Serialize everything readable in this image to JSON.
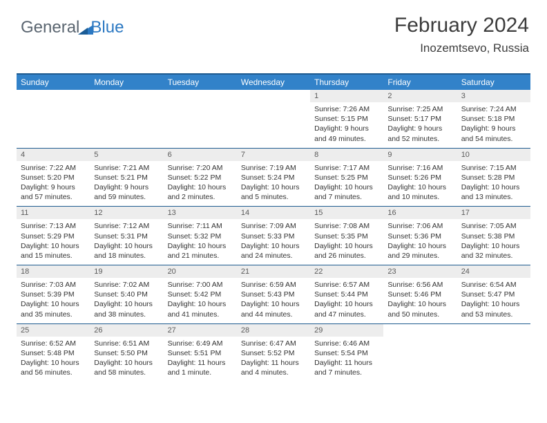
{
  "logo": {
    "text1": "General",
    "text2": "Blue"
  },
  "title": "February 2024",
  "location": "Inozemtsevo, Russia",
  "colors": {
    "header_bg": "#3282c9",
    "header_border": "#1d5a8f",
    "daynum_bg": "#ededed",
    "text": "#333333"
  },
  "day_headers": [
    "Sunday",
    "Monday",
    "Tuesday",
    "Wednesday",
    "Thursday",
    "Friday",
    "Saturday"
  ],
  "weeks": [
    [
      null,
      null,
      null,
      null,
      {
        "n": "1",
        "sr": "7:26 AM",
        "ss": "5:15 PM",
        "dl": "9 hours and 49 minutes."
      },
      {
        "n": "2",
        "sr": "7:25 AM",
        "ss": "5:17 PM",
        "dl": "9 hours and 52 minutes."
      },
      {
        "n": "3",
        "sr": "7:24 AM",
        "ss": "5:18 PM",
        "dl": "9 hours and 54 minutes."
      }
    ],
    [
      {
        "n": "4",
        "sr": "7:22 AM",
        "ss": "5:20 PM",
        "dl": "9 hours and 57 minutes."
      },
      {
        "n": "5",
        "sr": "7:21 AM",
        "ss": "5:21 PM",
        "dl": "9 hours and 59 minutes."
      },
      {
        "n": "6",
        "sr": "7:20 AM",
        "ss": "5:22 PM",
        "dl": "10 hours and 2 minutes."
      },
      {
        "n": "7",
        "sr": "7:19 AM",
        "ss": "5:24 PM",
        "dl": "10 hours and 5 minutes."
      },
      {
        "n": "8",
        "sr": "7:17 AM",
        "ss": "5:25 PM",
        "dl": "10 hours and 7 minutes."
      },
      {
        "n": "9",
        "sr": "7:16 AM",
        "ss": "5:26 PM",
        "dl": "10 hours and 10 minutes."
      },
      {
        "n": "10",
        "sr": "7:15 AM",
        "ss": "5:28 PM",
        "dl": "10 hours and 13 minutes."
      }
    ],
    [
      {
        "n": "11",
        "sr": "7:13 AM",
        "ss": "5:29 PM",
        "dl": "10 hours and 15 minutes."
      },
      {
        "n": "12",
        "sr": "7:12 AM",
        "ss": "5:31 PM",
        "dl": "10 hours and 18 minutes."
      },
      {
        "n": "13",
        "sr": "7:11 AM",
        "ss": "5:32 PM",
        "dl": "10 hours and 21 minutes."
      },
      {
        "n": "14",
        "sr": "7:09 AM",
        "ss": "5:33 PM",
        "dl": "10 hours and 24 minutes."
      },
      {
        "n": "15",
        "sr": "7:08 AM",
        "ss": "5:35 PM",
        "dl": "10 hours and 26 minutes."
      },
      {
        "n": "16",
        "sr": "7:06 AM",
        "ss": "5:36 PM",
        "dl": "10 hours and 29 minutes."
      },
      {
        "n": "17",
        "sr": "7:05 AM",
        "ss": "5:38 PM",
        "dl": "10 hours and 32 minutes."
      }
    ],
    [
      {
        "n": "18",
        "sr": "7:03 AM",
        "ss": "5:39 PM",
        "dl": "10 hours and 35 minutes."
      },
      {
        "n": "19",
        "sr": "7:02 AM",
        "ss": "5:40 PM",
        "dl": "10 hours and 38 minutes."
      },
      {
        "n": "20",
        "sr": "7:00 AM",
        "ss": "5:42 PM",
        "dl": "10 hours and 41 minutes."
      },
      {
        "n": "21",
        "sr": "6:59 AM",
        "ss": "5:43 PM",
        "dl": "10 hours and 44 minutes."
      },
      {
        "n": "22",
        "sr": "6:57 AM",
        "ss": "5:44 PM",
        "dl": "10 hours and 47 minutes."
      },
      {
        "n": "23",
        "sr": "6:56 AM",
        "ss": "5:46 PM",
        "dl": "10 hours and 50 minutes."
      },
      {
        "n": "24",
        "sr": "6:54 AM",
        "ss": "5:47 PM",
        "dl": "10 hours and 53 minutes."
      }
    ],
    [
      {
        "n": "25",
        "sr": "6:52 AM",
        "ss": "5:48 PM",
        "dl": "10 hours and 56 minutes."
      },
      {
        "n": "26",
        "sr": "6:51 AM",
        "ss": "5:50 PM",
        "dl": "10 hours and 58 minutes."
      },
      {
        "n": "27",
        "sr": "6:49 AM",
        "ss": "5:51 PM",
        "dl": "11 hours and 1 minute."
      },
      {
        "n": "28",
        "sr": "6:47 AM",
        "ss": "5:52 PM",
        "dl": "11 hours and 4 minutes."
      },
      {
        "n": "29",
        "sr": "6:46 AM",
        "ss": "5:54 PM",
        "dl": "11 hours and 7 minutes."
      },
      null,
      null
    ]
  ],
  "labels": {
    "sunrise": "Sunrise: ",
    "sunset": "Sunset: ",
    "daylight": "Daylight: "
  }
}
